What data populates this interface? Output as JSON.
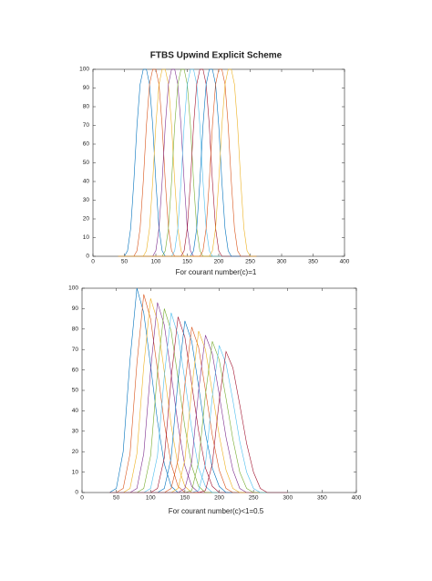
{
  "chart_data": [
    {
      "type": "line",
      "title": "FTBS Upwind Explicit Scheme",
      "caption": "For courant number(c)=1",
      "xlim": [
        0,
        400
      ],
      "ylim": [
        0,
        100
      ],
      "xticks": [
        0,
        50,
        100,
        150,
        200,
        250,
        300,
        350,
        400
      ],
      "yticks": [
        0,
        10,
        20,
        30,
        40,
        50,
        60,
        70,
        80,
        90,
        100
      ],
      "grid": false,
      "x": [
        40,
        45,
        50,
        55,
        60,
        65,
        70,
        75,
        80,
        85,
        90,
        95,
        100,
        105,
        110,
        115,
        120,
        125,
        130,
        135,
        140,
        145,
        150,
        155,
        160,
        165,
        170,
        175,
        180,
        185,
        190,
        195,
        200,
        205,
        210,
        215,
        220,
        225,
        230,
        235,
        240,
        245,
        250,
        255,
        260
      ],
      "series": [
        {
          "color": "#0072bd",
          "values": [
            0,
            0,
            0,
            3,
            15,
            40,
            70,
            92,
            100,
            100,
            92,
            70,
            40,
            15,
            3,
            0,
            0,
            0,
            0,
            0,
            0,
            0,
            0,
            0,
            0,
            0,
            0,
            0,
            0,
            0,
            0,
            0,
            0,
            0,
            0,
            0,
            0,
            0,
            0,
            0,
            0,
            0,
            0,
            0,
            0
          ]
        },
        {
          "color": "#d95319",
          "values": [
            0,
            0,
            0,
            0,
            0,
            0,
            3,
            15,
            40,
            70,
            92,
            100,
            100,
            92,
            70,
            40,
            15,
            3,
            0,
            0,
            0,
            0,
            0,
            0,
            0,
            0,
            0,
            0,
            0,
            0,
            0,
            0,
            0,
            0,
            0,
            0,
            0,
            0,
            0,
            0,
            0,
            0,
            0,
            0,
            0
          ]
        },
        {
          "color": "#edb120",
          "values": [
            0,
            0,
            0,
            0,
            0,
            0,
            0,
            0,
            0,
            3,
            15,
            40,
            70,
            92,
            100,
            100,
            92,
            70,
            40,
            15,
            3,
            0,
            0,
            0,
            0,
            0,
            0,
            0,
            0,
            0,
            0,
            0,
            0,
            0,
            0,
            0,
            0,
            0,
            0,
            0,
            0,
            0,
            0,
            0,
            0
          ]
        },
        {
          "color": "#7e2f8e",
          "values": [
            0,
            0,
            0,
            0,
            0,
            0,
            0,
            0,
            0,
            0,
            0,
            0,
            3,
            15,
            40,
            70,
            92,
            100,
            100,
            92,
            70,
            40,
            15,
            3,
            0,
            0,
            0,
            0,
            0,
            0,
            0,
            0,
            0,
            0,
            0,
            0,
            0,
            0,
            0,
            0,
            0,
            0,
            0,
            0,
            0
          ]
        },
        {
          "color": "#77ac30",
          "values": [
            0,
            0,
            0,
            0,
            0,
            0,
            0,
            0,
            0,
            0,
            0,
            0,
            0,
            0,
            0,
            3,
            15,
            40,
            70,
            92,
            100,
            100,
            92,
            70,
            40,
            15,
            3,
            0,
            0,
            0,
            0,
            0,
            0,
            0,
            0,
            0,
            0,
            0,
            0,
            0,
            0,
            0,
            0,
            0,
            0
          ]
        },
        {
          "color": "#4dbeee",
          "values": [
            0,
            0,
            0,
            0,
            0,
            0,
            0,
            0,
            0,
            0,
            0,
            0,
            0,
            0,
            0,
            0,
            0,
            0,
            3,
            15,
            40,
            70,
            92,
            100,
            100,
            92,
            70,
            40,
            15,
            3,
            0,
            0,
            0,
            0,
            0,
            0,
            0,
            0,
            0,
            0,
            0,
            0,
            0,
            0,
            0
          ]
        },
        {
          "color": "#a2142f",
          "values": [
            0,
            0,
            0,
            0,
            0,
            0,
            0,
            0,
            0,
            0,
            0,
            0,
            0,
            0,
            0,
            0,
            0,
            0,
            0,
            0,
            0,
            3,
            15,
            40,
            70,
            92,
            100,
            100,
            92,
            70,
            40,
            15,
            3,
            0,
            0,
            0,
            0,
            0,
            0,
            0,
            0,
            0,
            0,
            0,
            0
          ]
        },
        {
          "color": "#0072bd",
          "values": [
            0,
            0,
            0,
            0,
            0,
            0,
            0,
            0,
            0,
            0,
            0,
            0,
            0,
            0,
            0,
            0,
            0,
            0,
            0,
            0,
            0,
            0,
            0,
            0,
            3,
            15,
            40,
            70,
            92,
            100,
            100,
            92,
            70,
            40,
            15,
            3,
            0,
            0,
            0,
            0,
            0,
            0,
            0,
            0,
            0
          ]
        },
        {
          "color": "#d95319",
          "values": [
            0,
            0,
            0,
            0,
            0,
            0,
            0,
            0,
            0,
            0,
            0,
            0,
            0,
            0,
            0,
            0,
            0,
            0,
            0,
            0,
            0,
            0,
            0,
            0,
            0,
            0,
            0,
            3,
            15,
            40,
            70,
            92,
            100,
            100,
            92,
            70,
            40,
            15,
            3,
            0,
            0,
            0,
            0,
            0,
            0
          ]
        },
        {
          "color": "#edb120",
          "values": [
            0,
            0,
            0,
            0,
            0,
            0,
            0,
            0,
            0,
            0,
            0,
            0,
            0,
            0,
            0,
            0,
            0,
            0,
            0,
            0,
            0,
            0,
            0,
            0,
            0,
            0,
            0,
            0,
            0,
            0,
            3,
            15,
            40,
            70,
            92,
            100,
            100,
            92,
            70,
            40,
            15,
            3,
            0,
            0,
            0
          ]
        }
      ]
    },
    {
      "type": "line",
      "caption": "For courant number(c)<1=0.5",
      "xlim": [
        0,
        400
      ],
      "ylim": [
        0,
        100
      ],
      "xticks": [
        0,
        50,
        100,
        150,
        200,
        250,
        300,
        350,
        400
      ],
      "yticks": [
        0,
        10,
        20,
        30,
        40,
        50,
        60,
        70,
        80,
        90,
        100
      ],
      "grid": false,
      "x": [
        40,
        50,
        60,
        70,
        80,
        90,
        100,
        110,
        120,
        130,
        140,
        150,
        160,
        170,
        180,
        190,
        200,
        210,
        220,
        230,
        240,
        250,
        260,
        270,
        280,
        290,
        300
      ],
      "series": [
        {
          "color": "#0072bd",
          "values": [
            0,
            2,
            20,
            65,
            100,
            88,
            62,
            35,
            14,
            3,
            0,
            0,
            0,
            0,
            0,
            0,
            0,
            0,
            0,
            0,
            0,
            0,
            0,
            0,
            0,
            0,
            0
          ]
        },
        {
          "color": "#d95319",
          "values": [
            0,
            0,
            2,
            19,
            63,
            97,
            85,
            60,
            34,
            14,
            3,
            0,
            0,
            0,
            0,
            0,
            0,
            0,
            0,
            0,
            0,
            0,
            0,
            0,
            0,
            0,
            0
          ]
        },
        {
          "color": "#edb120",
          "values": [
            0,
            0,
            0,
            2,
            19,
            62,
            95,
            84,
            59,
            33,
            13,
            3,
            0,
            0,
            0,
            0,
            0,
            0,
            0,
            0,
            0,
            0,
            0,
            0,
            0,
            0,
            0
          ]
        },
        {
          "color": "#7e2f8e",
          "values": [
            0,
            0,
            0,
            0,
            2,
            19,
            60,
            93,
            82,
            58,
            33,
            13,
            3,
            0,
            0,
            0,
            0,
            0,
            0,
            0,
            0,
            0,
            0,
            0,
            0,
            0,
            0
          ]
        },
        {
          "color": "#77ac30",
          "values": [
            0,
            0,
            0,
            0,
            0,
            2,
            18,
            59,
            90,
            79,
            56,
            32,
            13,
            3,
            0,
            0,
            0,
            0,
            0,
            0,
            0,
            0,
            0,
            0,
            0,
            0,
            0
          ]
        },
        {
          "color": "#4dbeee",
          "values": [
            0,
            0,
            0,
            0,
            0,
            0,
            2,
            18,
            57,
            88,
            77,
            55,
            31,
            12,
            3,
            0,
            0,
            0,
            0,
            0,
            0,
            0,
            0,
            0,
            0,
            0,
            0
          ]
        },
        {
          "color": "#a2142f",
          "values": [
            0,
            0,
            0,
            0,
            0,
            0,
            0,
            2,
            17,
            56,
            86,
            76,
            53,
            30,
            12,
            3,
            0,
            0,
            0,
            0,
            0,
            0,
            0,
            0,
            0,
            0,
            0
          ]
        },
        {
          "color": "#0072bd",
          "values": [
            0,
            0,
            0,
            0,
            0,
            0,
            0,
            0,
            2,
            17,
            55,
            84,
            74,
            52,
            29,
            12,
            3,
            0,
            0,
            0,
            0,
            0,
            0,
            0,
            0,
            0,
            0
          ]
        },
        {
          "color": "#d95319",
          "values": [
            0,
            0,
            0,
            0,
            0,
            0,
            0,
            0,
            0,
            2,
            16,
            53,
            81,
            71,
            50,
            28,
            11,
            2,
            0,
            0,
            0,
            0,
            0,
            0,
            0,
            0,
            0
          ]
        },
        {
          "color": "#edb120",
          "values": [
            0,
            0,
            0,
            0,
            0,
            0,
            0,
            0,
            0,
            0,
            2,
            16,
            51,
            79,
            70,
            49,
            28,
            11,
            2,
            0,
            0,
            0,
            0,
            0,
            0,
            0,
            0
          ]
        },
        {
          "color": "#7e2f8e",
          "values": [
            0,
            0,
            0,
            0,
            0,
            0,
            0,
            0,
            0,
            0,
            0,
            2,
            15,
            50,
            77,
            68,
            48,
            27,
            11,
            2,
            0,
            0,
            0,
            0,
            0,
            0,
            0
          ]
        },
        {
          "color": "#77ac30",
          "values": [
            0,
            0,
            0,
            0,
            0,
            0,
            0,
            0,
            0,
            0,
            0,
            0,
            1,
            15,
            48,
            74,
            65,
            46,
            26,
            10,
            2,
            0,
            0,
            0,
            0,
            0,
            0
          ]
        },
        {
          "color": "#4dbeee",
          "values": [
            0,
            0,
            0,
            0,
            0,
            0,
            0,
            0,
            0,
            0,
            0,
            0,
            0,
            1,
            14,
            47,
            72,
            63,
            45,
            25,
            10,
            2,
            0,
            0,
            0,
            0,
            0
          ]
        },
        {
          "color": "#a2142f",
          "values": [
            0,
            0,
            0,
            0,
            0,
            0,
            0,
            0,
            0,
            0,
            0,
            0,
            0,
            0,
            1,
            14,
            45,
            69,
            61,
            43,
            24,
            10,
            2,
            0,
            0,
            0,
            0
          ]
        }
      ]
    }
  ]
}
